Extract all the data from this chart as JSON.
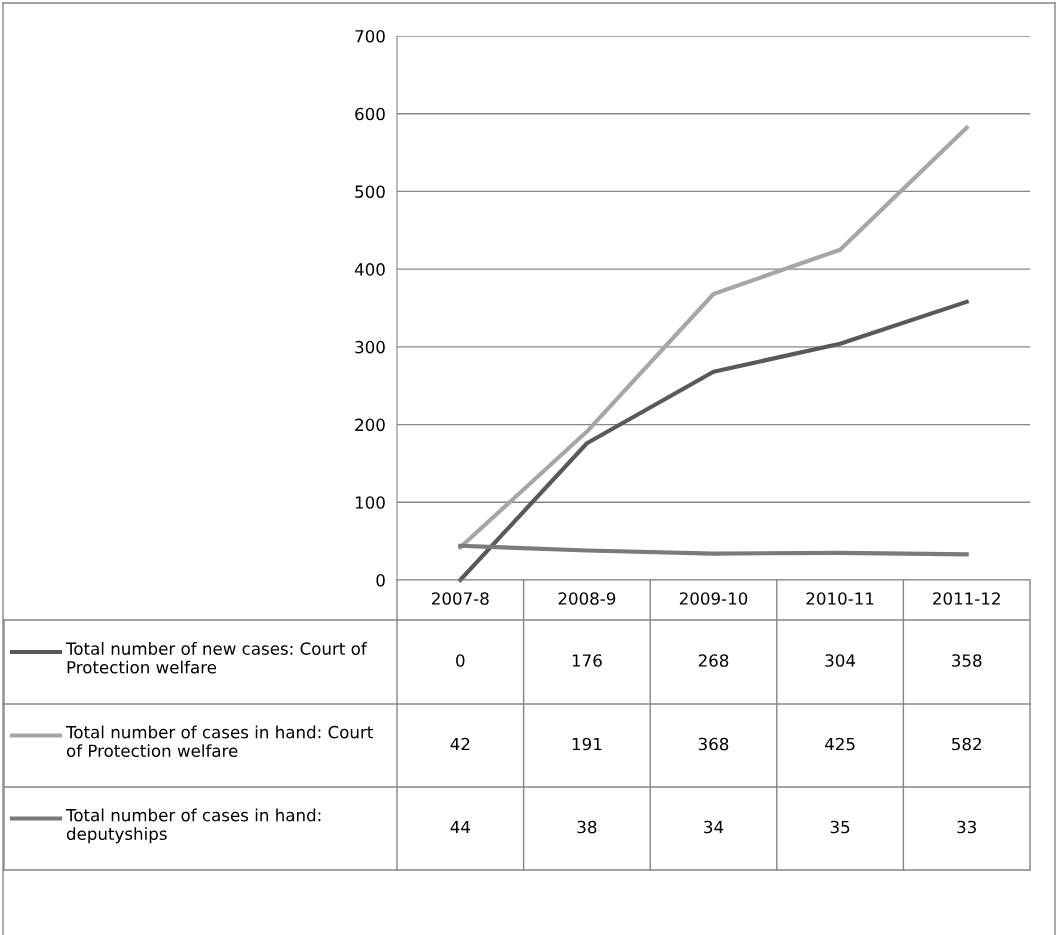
{
  "chart_data": {
    "type": "line",
    "categories": [
      "2007-8",
      "2008-9",
      "2009-10",
      "2010-11",
      "2011-12"
    ],
    "series": [
      {
        "name": "Total number of new cases: Court of Protection welfare",
        "color": "#595959",
        "values": [
          0,
          176,
          268,
          304,
          358
        ]
      },
      {
        "name": "Total number of cases in hand: Court of Protection welfare",
        "color": "#a6a6a6",
        "values": [
          42,
          191,
          368,
          425,
          582
        ]
      },
      {
        "name": "Total number of cases in hand: deputyships",
        "color": "#7a7a7a",
        "values": [
          44,
          38,
          34,
          35,
          33
        ]
      }
    ],
    "ylim": [
      0,
      700
    ],
    "yticks": [
      0,
      100,
      200,
      300,
      400,
      500,
      600,
      700
    ],
    "grid": "y",
    "legend": "bottom",
    "data_labels": true,
    "marker": "none",
    "line_style": "solid"
  }
}
